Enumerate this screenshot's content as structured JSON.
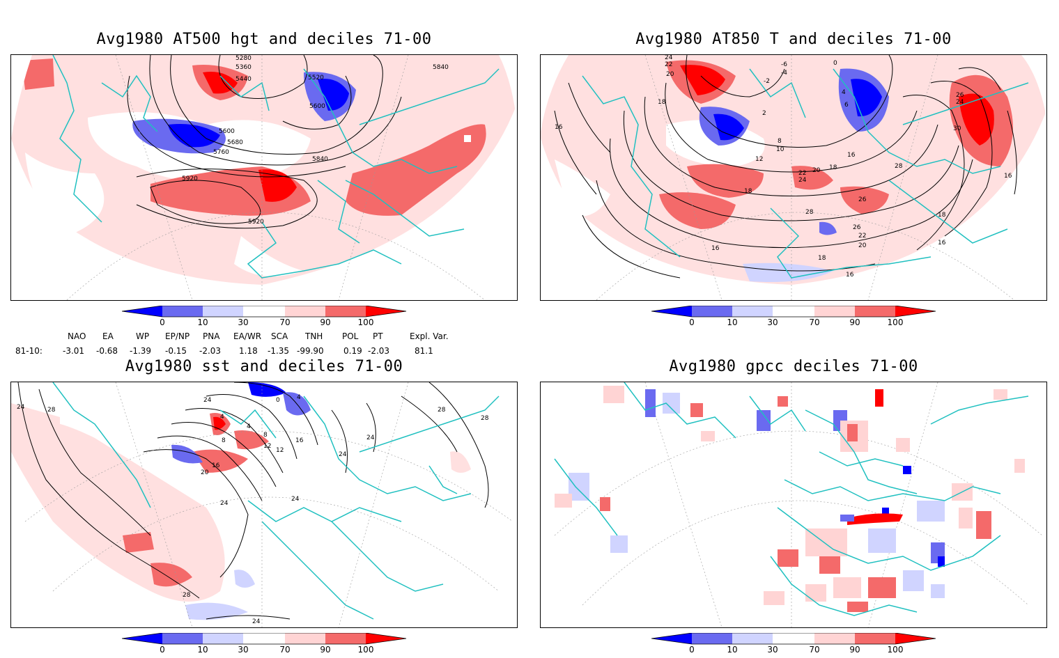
{
  "panels": [
    {
      "title": "Avg1980 AT500 hgt and deciles 71-00"
    },
    {
      "title": "Avg1980 AT850 T and deciles 71-00"
    },
    {
      "title": "Avg1980 sst and deciles 71-00"
    },
    {
      "title": "Avg1980 gpcc deciles 71-00"
    }
  ],
  "colorbar": {
    "labels": [
      "0",
      "10",
      "30",
      "70",
      "90",
      "100"
    ],
    "colors": {
      "dark_blue": "#0000ff",
      "mid_blue": "#6a6af0",
      "light_blue": "#d0d4ff",
      "white": "#ffffff",
      "light_red": "#ffd4d4",
      "mid_red": "#f46a6a",
      "dark_red": "#ff0000"
    }
  },
  "contour_labels": {
    "hgt": [
      "5280",
      "5360",
      "5440",
      "5520",
      "5600",
      "5600",
      "5680",
      "5760",
      "5840",
      "5840",
      "5920",
      "5920"
    ],
    "t850": [
      "24",
      "22",
      "20",
      "18",
      "16",
      "-6",
      "-4",
      "0",
      "-2",
      "2",
      "4",
      "6",
      "8",
      "10",
      "12",
      "16",
      "18",
      "20",
      "22",
      "24",
      "26",
      "28",
      "30",
      "18",
      "16",
      "18",
      "16",
      "16",
      "18",
      "16",
      "28",
      "26",
      "24",
      "22",
      "20",
      "26"
    ],
    "sst": [
      "24",
      "28",
      "24",
      "4",
      "4",
      "0",
      "8",
      "12",
      "16",
      "20",
      "24",
      "4",
      "8",
      "12",
      "16",
      "24",
      "24",
      "24",
      "28",
      "28",
      "28",
      "24"
    ]
  },
  "indices": {
    "headers": [
      "NAO",
      "EA",
      "WP",
      "EP/NP",
      "PNA",
      "EA/WR",
      "SCA",
      "TNH",
      "POL",
      "PT",
      "Expl. Var."
    ],
    "row_label": "81-10:",
    "values": [
      "-3.01",
      "-0.68",
      "-1.39",
      "-0.15",
      "-2.03",
      "1.18",
      "-1.35",
      "-99.90",
      "0.19",
      "-2.03",
      "81.1"
    ]
  },
  "map_colors": {
    "coast": "#20c0c0",
    "contour": "#000000"
  }
}
